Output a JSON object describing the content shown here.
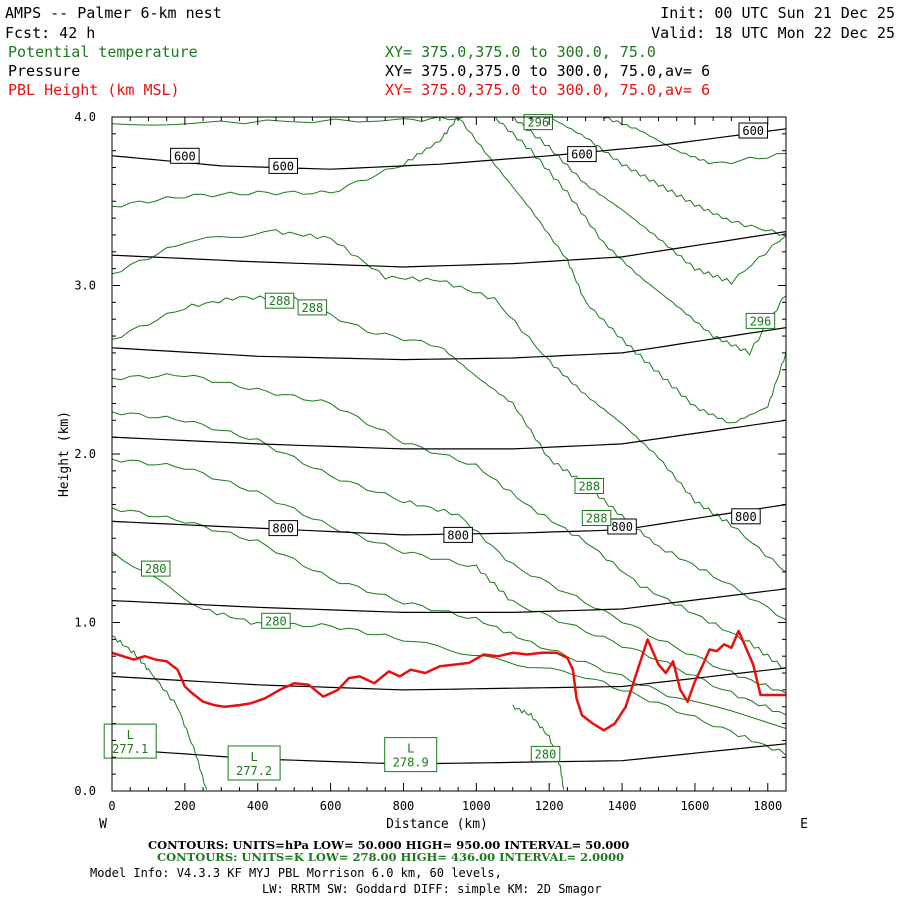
{
  "header": {
    "title": "AMPS -- Palmer 6-km nest",
    "init": "Init: 00 UTC Sun 21 Dec 25",
    "fcst": "Fcst:    42 h",
    "valid": "Valid: 18 UTC Mon 22 Dec 25",
    "var1": "Potential temperature",
    "var1_xy": "XY= 375.0,375.0 to 300.0, 75.0",
    "var2": "Pressure",
    "var2_xy": "XY= 375.0,375.0 to 300.0, 75.0,av=  6",
    "var3": "PBL Height (km MSL)",
    "var3_xy": "XY= 375.0,375.0 to 300.0, 75.0,av=  6"
  },
  "colors": {
    "theta": "#1a7a1a",
    "pressure": "#000000",
    "pbl": "#e8100e"
  },
  "footer": {
    "contours_p": "CONTOURS:  UNITS=hPa  LOW=   50.000        HIGH=   950.00        INTERVAL=    50.000",
    "contours_t": "CONTOURS:  UNITS=K  LOW=   278.00        HIGH=   436.00        INTERVAL=    2.0000",
    "model_info": "Model Info: V4.3.3    KF        MYJ PBL  Morrison           6.0 km,  60 levels,",
    "model_info2": "LW: RRTM SW: Goddard DIFF: simple KM: 2D Smagor"
  },
  "chart_data": {
    "type": "line",
    "title": "AMPS -- Palmer 6-km nest",
    "xlabel": "Distance (km)",
    "ylabel": "Height (km)",
    "xlim": [
      0,
      1850
    ],
    "ylim": [
      0,
      4.0
    ],
    "x_ticks": [
      0,
      200,
      400,
      600,
      800,
      1000,
      1200,
      1400,
      1600,
      1800
    ],
    "y_ticks": [
      0.0,
      1.0,
      2.0,
      3.0,
      4.0
    ],
    "y_tick_labels": [
      "0.0",
      "1.0",
      "2.0",
      "3.0",
      "4.0"
    ],
    "x_end_labels": {
      "left": "W",
      "right": "E"
    },
    "pressure_contours": [
      {
        "hPa": 600,
        "points": [
          [
            0,
            3.77
          ],
          [
            300,
            3.71
          ],
          [
            600,
            3.69
          ],
          [
            900,
            3.72
          ],
          [
            1200,
            3.77
          ],
          [
            1500,
            3.83
          ],
          [
            1850,
            3.93
          ]
        ]
      },
      {
        "hPa": 650,
        "points": [
          [
            0,
            3.18
          ],
          [
            400,
            3.14
          ],
          [
            800,
            3.11
          ],
          [
            1100,
            3.13
          ],
          [
            1400,
            3.17
          ],
          [
            1850,
            3.32
          ]
        ]
      },
      {
        "hPa": 700,
        "points": [
          [
            0,
            2.63
          ],
          [
            400,
            2.58
          ],
          [
            800,
            2.56
          ],
          [
            1100,
            2.57
          ],
          [
            1400,
            2.6
          ],
          [
            1850,
            2.75
          ]
        ]
      },
      {
        "hPa": 750,
        "points": [
          [
            0,
            2.1
          ],
          [
            400,
            2.06
          ],
          [
            800,
            2.03
          ],
          [
            1100,
            2.03
          ],
          [
            1400,
            2.06
          ],
          [
            1850,
            2.2
          ]
        ]
      },
      {
        "hPa": 800,
        "points": [
          [
            0,
            1.6
          ],
          [
            400,
            1.56
          ],
          [
            800,
            1.52
          ],
          [
            1100,
            1.53
          ],
          [
            1400,
            1.55
          ],
          [
            1850,
            1.7
          ]
        ]
      },
      {
        "hPa": 850,
        "points": [
          [
            0,
            1.13
          ],
          [
            400,
            1.09
          ],
          [
            800,
            1.06
          ],
          [
            1100,
            1.06
          ],
          [
            1400,
            1.08
          ],
          [
            1850,
            1.2
          ]
        ]
      },
      {
        "hPa": 900,
        "points": [
          [
            0,
            0.68
          ],
          [
            400,
            0.63
          ],
          [
            800,
            0.6
          ],
          [
            1100,
            0.61
          ],
          [
            1400,
            0.62
          ],
          [
            1850,
            0.73
          ]
        ]
      },
      {
        "hPa": 950,
        "points": [
          [
            0,
            0.25
          ],
          [
            400,
            0.19
          ],
          [
            800,
            0.16
          ],
          [
            1100,
            0.17
          ],
          [
            1400,
            0.18
          ],
          [
            1850,
            0.28
          ]
        ]
      }
    ],
    "pressure_labels": [
      {
        "text": "600",
        "x": 200,
        "y": 3.77
      },
      {
        "text": "600",
        "x": 470,
        "y": 3.71
      },
      {
        "text": "600",
        "x": 1290,
        "y": 3.78
      },
      {
        "text": "600",
        "x": 1760,
        "y": 3.92
      },
      {
        "text": "800",
        "x": 470,
        "y": 1.56
      },
      {
        "text": "800",
        "x": 950,
        "y": 1.52
      },
      {
        "text": "800",
        "x": 1400,
        "y": 1.57
      },
      {
        "text": "800",
        "x": 1740,
        "y": 1.63
      }
    ],
    "theta_contours": [
      {
        "points": [
          [
            0,
            3.96
          ],
          [
            300,
            3.97
          ],
          [
            800,
            3.98
          ],
          [
            1000,
            4.0
          ]
        ]
      },
      {
        "points": [
          [
            0,
            3.47
          ],
          [
            200,
            3.53
          ],
          [
            400,
            3.55
          ],
          [
            600,
            3.55
          ],
          [
            800,
            3.72
          ],
          [
            900,
            3.86
          ],
          [
            950,
            4.0
          ]
        ]
      },
      {
        "points": [
          [
            0,
            3.07
          ],
          [
            200,
            3.26
          ],
          [
            450,
            3.32
          ],
          [
            600,
            3.28
          ],
          [
            750,
            3.05
          ],
          [
            900,
            3.03
          ],
          [
            1050,
            2.92
          ],
          [
            1200,
            2.55
          ],
          [
            1300,
            2.35
          ],
          [
            1400,
            2.18
          ],
          [
            1500,
            1.98
          ],
          [
            1600,
            1.72
          ],
          [
            1700,
            1.58
          ],
          [
            1850,
            1.3
          ]
        ]
      },
      {
        "points": [
          [
            0,
            2.68
          ],
          [
            200,
            2.87
          ],
          [
            350,
            2.93
          ],
          [
            500,
            2.92
          ],
          [
            700,
            2.73
          ],
          [
            900,
            2.64
          ],
          [
            1000,
            2.46
          ],
          [
            1100,
            2.3
          ],
          [
            1200,
            1.97
          ],
          [
            1300,
            1.82
          ],
          [
            1400,
            1.63
          ],
          [
            1500,
            1.45
          ],
          [
            1650,
            1.28
          ],
          [
            1850,
            1.02
          ]
        ]
      },
      {
        "points": [
          [
            0,
            2.45
          ],
          [
            200,
            2.47
          ],
          [
            400,
            2.38
          ],
          [
            600,
            2.3
          ],
          [
            800,
            2.07
          ],
          [
            1000,
            1.93
          ],
          [
            1150,
            1.68
          ],
          [
            1300,
            1.48
          ],
          [
            1450,
            1.22
          ],
          [
            1600,
            1.05
          ],
          [
            1750,
            0.88
          ],
          [
            1850,
            0.72
          ]
        ]
      },
      {
        "points": [
          [
            0,
            2.25
          ],
          [
            200,
            2.2
          ],
          [
            400,
            2.08
          ],
          [
            600,
            1.87
          ],
          [
            800,
            1.72
          ],
          [
            950,
            1.64
          ],
          [
            1100,
            1.34
          ],
          [
            1300,
            1.12
          ],
          [
            1500,
            0.9
          ],
          [
            1700,
            0.7
          ],
          [
            1850,
            0.58
          ]
        ]
      },
      {
        "points": [
          [
            0,
            1.97
          ],
          [
            200,
            1.92
          ],
          [
            400,
            1.77
          ],
          [
            600,
            1.57
          ],
          [
            800,
            1.42
          ],
          [
            1000,
            1.33
          ],
          [
            1100,
            1.12
          ],
          [
            1300,
            0.95
          ],
          [
            1500,
            0.78
          ],
          [
            1700,
            0.58
          ],
          [
            1850,
            0.45
          ]
        ]
      },
      {
        "points": [
          [
            0,
            1.68
          ],
          [
            200,
            1.6
          ],
          [
            400,
            1.48
          ],
          [
            600,
            1.26
          ],
          [
            800,
            1.12
          ],
          [
            1000,
            1.02
          ],
          [
            1150,
            0.88
          ],
          [
            1350,
            0.72
          ],
          [
            1550,
            0.55
          ],
          [
            1850,
            0.38
          ]
        ]
      },
      {
        "points": [
          [
            0,
            1.42
          ],
          [
            250,
            1.08
          ],
          [
            400,
            0.99
          ],
          [
            600,
            0.98
          ],
          [
            800,
            0.9
          ],
          [
            1050,
            0.78
          ],
          [
            1300,
            0.68
          ],
          [
            1500,
            0.52
          ],
          [
            1700,
            0.35
          ],
          [
            1850,
            0.22
          ]
        ]
      },
      {
        "points": [
          [
            950,
            4.0
          ],
          [
            1050,
            3.72
          ],
          [
            1150,
            3.45
          ],
          [
            1250,
            3.15
          ],
          [
            1300,
            2.9
          ],
          [
            1400,
            2.68
          ],
          [
            1500,
            2.48
          ],
          [
            1600,
            2.28
          ],
          [
            1700,
            2.18
          ],
          [
            1800,
            2.28
          ],
          [
            1850,
            2.6
          ]
        ]
      },
      {
        "points": [
          [
            1050,
            4.0
          ],
          [
            1150,
            3.8
          ],
          [
            1250,
            3.55
          ],
          [
            1350,
            3.25
          ],
          [
            1450,
            3.05
          ],
          [
            1550,
            2.88
          ],
          [
            1650,
            2.7
          ],
          [
            1750,
            2.6
          ],
          [
            1850,
            2.95
          ]
        ]
      },
      {
        "points": [
          [
            1100,
            4.0
          ],
          [
            1200,
            3.82
          ],
          [
            1300,
            3.6
          ],
          [
            1400,
            3.45
          ],
          [
            1500,
            3.28
          ],
          [
            1600,
            3.1
          ],
          [
            1700,
            3.02
          ],
          [
            1850,
            3.3
          ]
        ]
      },
      {
        "points": [
          [
            1200,
            4.0
          ],
          [
            1300,
            3.88
          ],
          [
            1400,
            3.72
          ],
          [
            1500,
            3.6
          ],
          [
            1600,
            3.48
          ],
          [
            1700,
            3.38
          ],
          [
            1850,
            3.3
          ]
        ]
      },
      {
        "points": [
          [
            1350,
            4.0
          ],
          [
            1450,
            3.92
          ],
          [
            1550,
            3.8
          ],
          [
            1650,
            3.72
          ],
          [
            1850,
            3.78
          ]
        ]
      },
      {
        "points": [
          [
            0,
            0.92
          ],
          [
            60,
            0.82
          ],
          [
            100,
            0.72
          ],
          [
            180,
            0.5
          ],
          [
            230,
            0.22
          ],
          [
            260,
            0.0
          ]
        ]
      },
      {
        "points": [
          [
            1100,
            0.5
          ],
          [
            1150,
            0.45
          ],
          [
            1200,
            0.32
          ],
          [
            1230,
            0.15
          ],
          [
            1240,
            0.0
          ]
        ]
      }
    ],
    "theta_labels": [
      {
        "text": "296",
        "x": 1170,
        "y": 3.97
      },
      {
        "text": "288",
        "x": 460,
        "y": 2.91
      },
      {
        "text": "288",
        "x": 550,
        "y": 2.87
      },
      {
        "text": "296",
        "x": 1780,
        "y": 2.79
      },
      {
        "text": "288",
        "x": 1310,
        "y": 1.81
      },
      {
        "text": "288",
        "x": 1330,
        "y": 1.62
      },
      {
        "text": "280",
        "x": 120,
        "y": 1.32
      },
      {
        "text": "280",
        "x": 450,
        "y": 1.01
      },
      {
        "text": "280",
        "x": 1190,
        "y": 0.22
      }
    ],
    "lows": [
      {
        "label": "L",
        "value": "277.1",
        "x": 50,
        "y": 0.29
      },
      {
        "label": "L",
        "value": "277.2",
        "x": 390,
        "y": 0.16
      },
      {
        "label": "L",
        "value": "278.9",
        "x": 820,
        "y": 0.21
      }
    ],
    "pbl_height": {
      "name": "PBL Height (km MSL)",
      "x": [
        0,
        30,
        60,
        90,
        120,
        150,
        180,
        200,
        220,
        250,
        280,
        310,
        350,
        380,
        420,
        460,
        500,
        540,
        580,
        620,
        650,
        680,
        720,
        760,
        790,
        820,
        860,
        900,
        940,
        980,
        1020,
        1060,
        1100,
        1140,
        1180,
        1220,
        1250,
        1265,
        1275,
        1290,
        1320,
        1350,
        1380,
        1410,
        1440,
        1470,
        1500,
        1520,
        1540,
        1560,
        1580,
        1600,
        1620,
        1640,
        1660,
        1680,
        1700,
        1720,
        1740,
        1760,
        1780,
        1800,
        1850
      ],
      "y": [
        0.82,
        0.8,
        0.78,
        0.8,
        0.78,
        0.77,
        0.72,
        0.62,
        0.58,
        0.53,
        0.51,
        0.5,
        0.51,
        0.52,
        0.55,
        0.6,
        0.64,
        0.63,
        0.56,
        0.6,
        0.67,
        0.68,
        0.64,
        0.71,
        0.68,
        0.72,
        0.7,
        0.74,
        0.75,
        0.76,
        0.81,
        0.8,
        0.82,
        0.81,
        0.82,
        0.82,
        0.79,
        0.72,
        0.55,
        0.45,
        0.4,
        0.36,
        0.4,
        0.5,
        0.7,
        0.9,
        0.75,
        0.7,
        0.77,
        0.6,
        0.53,
        0.65,
        0.74,
        0.84,
        0.83,
        0.87,
        0.85,
        0.95,
        0.85,
        0.75,
        0.57,
        0.57,
        0.57
      ]
    }
  }
}
